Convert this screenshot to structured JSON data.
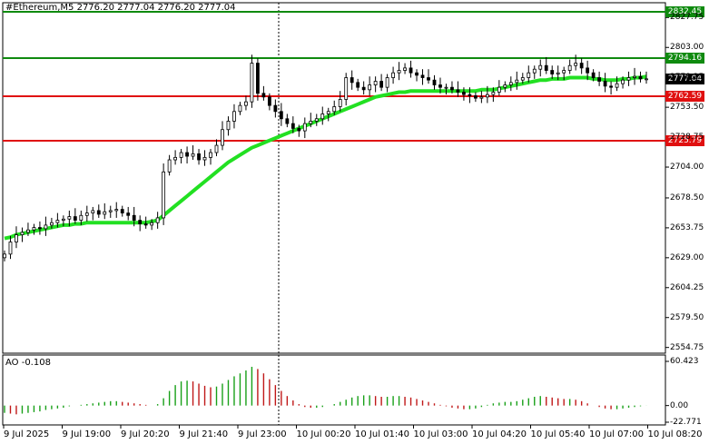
{
  "header": {
    "symbol_line": "#Ethereum,M5  2776.20 2777.04 2776.20 2777.04"
  },
  "indicator": {
    "title": "AO -0.108",
    "ticks": [
      "60.423",
      "0.00",
      "-22.771"
    ]
  },
  "price_axis": {
    "ticks": [
      "2827.75",
      "2803.00",
      "2778.25",
      "2753.50",
      "2728.75",
      "2704.00",
      "2678.50",
      "2653.75",
      "2629.00",
      "2604.25",
      "2579.50",
      "2554.75"
    ]
  },
  "time_axis": {
    "labels": [
      "9 Jul 2025",
      "9 Jul 19:00",
      "9 Jul 20:20",
      "9 Jul 21:40",
      "9 Jul 23:00",
      "10 Jul 00:20",
      "10 Jul 01:40",
      "10 Jul 03:00",
      "10 Jul 04:20",
      "10 Jul 05:40",
      "10 Jul 07:00",
      "10 Jul 08:20"
    ]
  },
  "levels": [
    {
      "label": "2832.45",
      "value": 2832.45,
      "color": "#0f8a0f",
      "role": "target"
    },
    {
      "label": "2794.16",
      "value": 2794.16,
      "color": "#0f8a0f",
      "role": "buy"
    },
    {
      "label": "2777.04",
      "value": 2777.04,
      "color": "#000000",
      "role": "current"
    },
    {
      "label": "2762.59",
      "value": 2762.59,
      "color": "#e01010",
      "role": "sell"
    },
    {
      "label": "2725.79",
      "value": 2725.79,
      "color": "#e01010",
      "role": "target"
    }
  ],
  "colors": {
    "ma": "#22e022",
    "ao_up": "#18a018",
    "ao_down": "#c01818",
    "candle": "#000000",
    "grid": "#dddddd"
  },
  "chart_data": {
    "type": "candlestick",
    "timeframe": "M5",
    "ylim": [
      2550,
      2840
    ],
    "series": [
      {
        "name": "close",
        "values": [
          2632,
          2642,
          2648,
          2650,
          2652,
          2654,
          2653,
          2656,
          2658,
          2660,
          2661,
          2663,
          2660,
          2664,
          2666,
          2668,
          2665,
          2667,
          2668,
          2669,
          2666,
          2664,
          2660,
          2657,
          2656,
          2658,
          2662,
          2700,
          2710,
          2712,
          2716,
          2713,
          2715,
          2710,
          2712,
          2716,
          2722,
          2735,
          2742,
          2750,
          2755,
          2758,
          2790,
          2765,
          2762,
          2755,
          2750,
          2744,
          2740,
          2736,
          2734,
          2740,
          2742,
          2744,
          2748,
          2750,
          2754,
          2760,
          2778,
          2774,
          2770,
          2768,
          2772,
          2775,
          2770,
          2778,
          2782,
          2784,
          2786,
          2782,
          2780,
          2778,
          2776,
          2772,
          2770,
          2770,
          2768,
          2766,
          2764,
          2763,
          2761,
          2762,
          2764,
          2766,
          2770,
          2772,
          2774,
          2776,
          2778,
          2782,
          2785,
          2788,
          2784,
          2781,
          2782,
          2784,
          2788,
          2790,
          2786,
          2782,
          2778,
          2775,
          2771,
          2770,
          2773,
          2776,
          2778,
          2779,
          2777,
          2777
        ]
      },
      {
        "name": "ma",
        "values": [
          2645,
          2646,
          2648,
          2649,
          2650,
          2651,
          2652,
          2653,
          2654,
          2655,
          2656,
          2656,
          2657,
          2657,
          2658,
          2658,
          2658,
          2658,
          2658,
          2658,
          2658,
          2658,
          2658,
          2658,
          2658,
          2659,
          2660,
          2664,
          2668,
          2672,
          2676,
          2680,
          2684,
          2688,
          2692,
          2696,
          2700,
          2704,
          2708,
          2711,
          2714,
          2717,
          2720,
          2722,
          2724,
          2726,
          2728,
          2730,
          2732,
          2734,
          2736,
          2738,
          2740,
          2742,
          2744,
          2746,
          2748,
          2750,
          2752,
          2754,
          2756,
          2758,
          2760,
          2762,
          2763,
          2764,
          2765,
          2766,
          2766,
          2767,
          2767,
          2767,
          2767,
          2767,
          2767,
          2767,
          2767,
          2767,
          2767,
          2767,
          2767,
          2768,
          2768,
          2768,
          2769,
          2770,
          2771,
          2772,
          2773,
          2774,
          2775,
          2776,
          2776,
          2777,
          2777,
          2777,
          2778,
          2778,
          2778,
          2778,
          2777,
          2777,
          2776,
          2776,
          2776,
          2777,
          2777,
          2778,
          2778,
          2779
        ]
      },
      {
        "name": "AO",
        "values": [
          -10,
          -11,
          -12,
          -11,
          -10,
          -9,
          -8,
          -6,
          -5,
          -4,
          -3,
          -1,
          0,
          1,
          2,
          3,
          4,
          5,
          6,
          6,
          5,
          4,
          3,
          2,
          1,
          0,
          2,
          10,
          20,
          28,
          33,
          34,
          33,
          30,
          27,
          25,
          26,
          30,
          35,
          40,
          44,
          48,
          53,
          50,
          44,
          36,
          28,
          20,
          13,
          7,
          2,
          -2,
          -3,
          -3,
          -2,
          0,
          2,
          5,
          8,
          11,
          13,
          14,
          14,
          13,
          12,
          12,
          13,
          13,
          12,
          11,
          9,
          7,
          5,
          3,
          1,
          -1,
          -3,
          -4,
          -5,
          -5,
          -4,
          -2,
          1,
          3,
          4,
          5,
          5,
          6,
          8,
          10,
          12,
          13,
          12,
          11,
          10,
          9,
          9,
          8,
          6,
          3,
          0,
          -2,
          -4,
          -5,
          -5,
          -4,
          -3,
          -2,
          -1,
          -0.1
        ]
      }
    ]
  }
}
